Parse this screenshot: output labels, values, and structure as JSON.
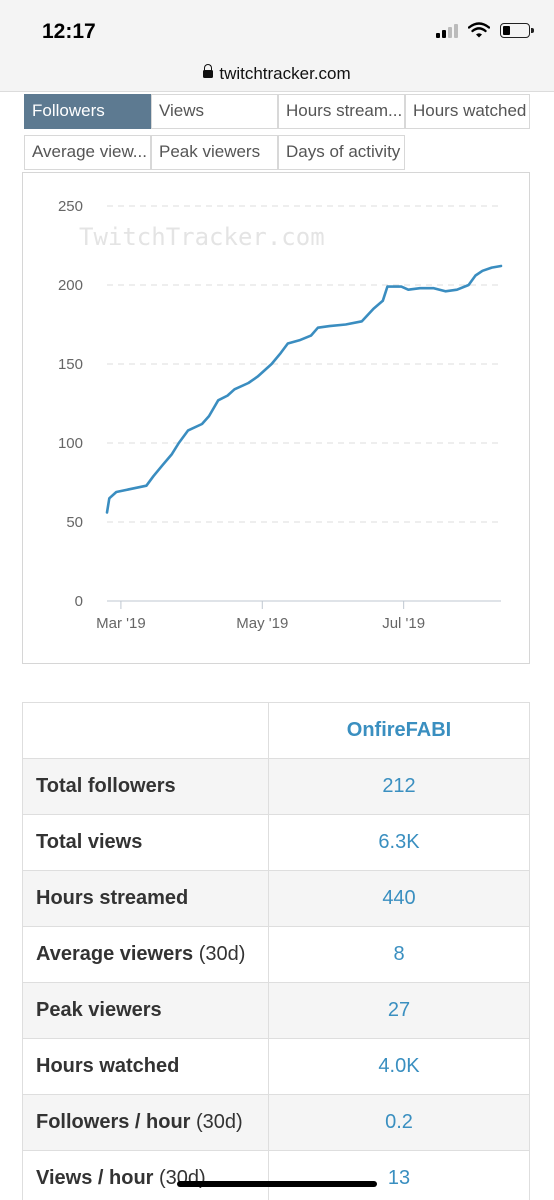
{
  "status_bar": {
    "time": "12:17",
    "icons": [
      "signal-icon",
      "wifi-icon",
      "battery-icon"
    ]
  },
  "url_bar": {
    "url": "twitchtracker.com",
    "icon": "lock-icon"
  },
  "tabs": [
    {
      "label": "Followers",
      "active": true
    },
    {
      "label": "Views",
      "active": false
    },
    {
      "label": "Hours stream...",
      "active": false
    },
    {
      "label": "Hours watched",
      "active": false
    },
    {
      "label": "Average view...",
      "active": false
    },
    {
      "label": "Peak viewers",
      "active": false
    },
    {
      "label": "Days of activity",
      "active": false
    }
  ],
  "chart_data": {
    "type": "line",
    "watermark": "TwitchTracker.com",
    "xlabel": "",
    "ylabel": "",
    "ylim": [
      0,
      250
    ],
    "y_ticks": [
      0,
      50,
      100,
      150,
      200,
      250
    ],
    "x_ticks": [
      {
        "date": "2019-03-01",
        "label": "Mar '19"
      },
      {
        "date": "2019-05-01",
        "label": "May '19"
      },
      {
        "date": "2019-07-01",
        "label": "Jul '19"
      }
    ],
    "xlim": [
      "2019-02-23",
      "2019-08-12"
    ],
    "grid": true,
    "color": "#3a8dc0",
    "series": [
      {
        "name": "",
        "points": [
          [
            "2019-02-23",
            56
          ],
          [
            "2019-02-24",
            65
          ],
          [
            "2019-02-27",
            69
          ],
          [
            "2019-03-12",
            73
          ],
          [
            "2019-03-15",
            79
          ],
          [
            "2019-03-19",
            86
          ],
          [
            "2019-03-23",
            93
          ],
          [
            "2019-03-26",
            100
          ],
          [
            "2019-03-30",
            108
          ],
          [
            "2019-04-05",
            112
          ],
          [
            "2019-04-08",
            117
          ],
          [
            "2019-04-12",
            127
          ],
          [
            "2019-04-16",
            130
          ],
          [
            "2019-04-19",
            134
          ],
          [
            "2019-04-25",
            138
          ],
          [
            "2019-04-29",
            142
          ],
          [
            "2019-05-05",
            150
          ],
          [
            "2019-05-09",
            157
          ],
          [
            "2019-05-12",
            163
          ],
          [
            "2019-05-17",
            165
          ],
          [
            "2019-05-22",
            168
          ],
          [
            "2019-05-25",
            173
          ],
          [
            "2019-05-30",
            174
          ],
          [
            "2019-06-06",
            175
          ],
          [
            "2019-06-13",
            177
          ],
          [
            "2019-06-18",
            185
          ],
          [
            "2019-06-22",
            190
          ],
          [
            "2019-06-24",
            199
          ],
          [
            "2019-06-30",
            199
          ],
          [
            "2019-07-03",
            197
          ],
          [
            "2019-07-08",
            198
          ],
          [
            "2019-07-14",
            198
          ],
          [
            "2019-07-19",
            196
          ],
          [
            "2019-07-24",
            197
          ],
          [
            "2019-07-29",
            200
          ],
          [
            "2019-08-01",
            206
          ],
          [
            "2019-08-04",
            209
          ],
          [
            "2019-08-08",
            211
          ],
          [
            "2019-08-12",
            212
          ]
        ]
      }
    ]
  },
  "stats": {
    "header": "OnfireFABI",
    "rows": [
      {
        "label": "Total followers",
        "suffix": "",
        "value": "212"
      },
      {
        "label": "Total views",
        "suffix": "",
        "value": "6.3K"
      },
      {
        "label": "Hours streamed",
        "suffix": "",
        "value": "440"
      },
      {
        "label": "Average viewers",
        "suffix": " (30d)",
        "value": "8"
      },
      {
        "label": "Peak viewers",
        "suffix": "",
        "value": "27"
      },
      {
        "label": "Hours watched",
        "suffix": "",
        "value": "4.0K"
      },
      {
        "label": "Followers / hour",
        "suffix": " (30d)",
        "value": "0.2"
      },
      {
        "label": "Views / hour",
        "suffix": " (30d)",
        "value": "13"
      }
    ]
  }
}
